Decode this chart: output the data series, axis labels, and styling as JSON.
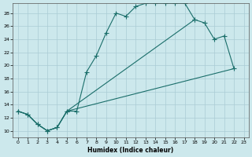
{
  "xlabel": "Humidex (Indice chaleur)",
  "background_color": "#cce8ec",
  "grid_color": "#aaccd4",
  "line_color": "#1a6e6a",
  "xlim": [
    -0.5,
    23.5
  ],
  "ylim": [
    9,
    29.5
  ],
  "xticks": [
    0,
    1,
    2,
    3,
    4,
    5,
    6,
    7,
    8,
    9,
    10,
    11,
    12,
    13,
    14,
    15,
    16,
    17,
    18,
    19,
    20,
    21,
    22,
    23
  ],
  "yticks": [
    10,
    12,
    14,
    16,
    18,
    20,
    22,
    24,
    26,
    28
  ],
  "curve1_x": [
    0,
    1,
    2,
    3,
    4,
    5,
    6,
    7,
    8,
    9,
    10,
    11,
    12,
    13,
    14,
    15,
    16,
    17,
    18
  ],
  "curve1_y": [
    13,
    12.5,
    11,
    10,
    10.5,
    13,
    13,
    19,
    21.5,
    25,
    28,
    27.5,
    29,
    29.5,
    29.5,
    29.5,
    29.5,
    29.5,
    27
  ],
  "curve2_x": [
    0,
    1,
    2,
    3,
    4,
    5,
    18,
    19,
    20,
    21,
    22
  ],
  "curve2_y": [
    13,
    12.5,
    11,
    10,
    10.5,
    13,
    27,
    26.5,
    24,
    24.5,
    19.5
  ],
  "curve3_x": [
    0,
    1,
    2,
    3,
    4,
    5,
    22
  ],
  "curve3_y": [
    13,
    12.5,
    11,
    10,
    10.5,
    13,
    19.5
  ]
}
